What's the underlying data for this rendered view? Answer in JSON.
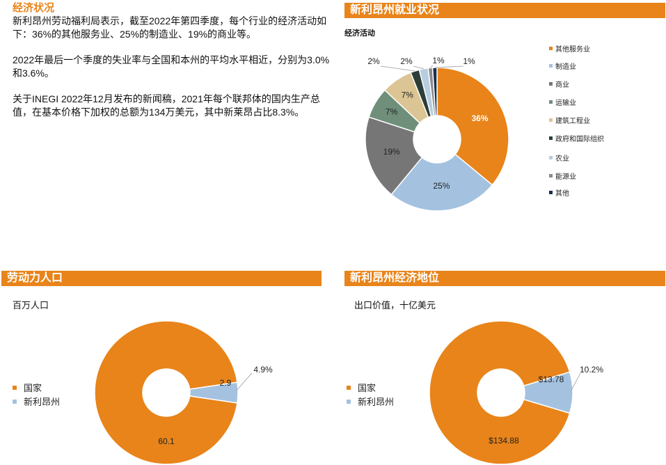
{
  "economy": {
    "title": "经济状况",
    "p1": "新利昂州劳动福利局表示，截至2022年第四季度，每个行业的经济活动如下：36%的其他服务业、25%的制造业、19%的商业等。",
    "p2": "2022年最后一个季度的失业率与全国和本州的平均水平相近，分别为3.0%和3.6%。",
    "p3": "关于INEGI 2022年12月发布的新闻稿，2021年每个联邦体的国内生产总值，在基本价格下加权的总额为134万美元，其中新莱昂占比8.3%。"
  },
  "employment": {
    "banner": "新利昂州就业状况",
    "subtitle": "经济活动"
  },
  "labor": {
    "banner": "劳动力人口",
    "unit": "百万人口"
  },
  "position": {
    "banner": "新利昂州经济地位",
    "unit": "出口价值，十亿美元"
  },
  "colors": {
    "orange": "#e8841a",
    "lightblue": "#a4c2e0"
  },
  "chart_data": [
    {
      "type": "pie",
      "title": "经济活动",
      "categories": [
        "其他服务业",
        "制造业",
        "商业",
        "运输业",
        "建筑工程业",
        "政府和国际组织",
        "农业",
        "能源业",
        "其他"
      ],
      "values": [
        36,
        25,
        19,
        7,
        7,
        2,
        2,
        1,
        1
      ],
      "value_labels": [
        "36%",
        "25%",
        "19%",
        "7%",
        "7%",
        "2%",
        "2%",
        "1%",
        "1%"
      ],
      "colors": [
        "#e8841a",
        "#a4c2e0",
        "#767676",
        "#6f8f7a",
        "#dcc594",
        "#2c3e37",
        "#b7cde0",
        "#8b8b8b",
        "#1a2f4d"
      ],
      "legend": "right"
    },
    {
      "type": "pie",
      "title": "百万人口",
      "categories": [
        "国家",
        "新利昂州"
      ],
      "values": [
        60.1,
        2.9
      ],
      "value_labels": [
        "60.1",
        "2.9"
      ],
      "share_label": "4.9%",
      "colors": [
        "#e8841a",
        "#a4c2e0"
      ],
      "legend": "left"
    },
    {
      "type": "pie",
      "title": "出口价值，十亿美元",
      "categories": [
        "国家",
        "新利昂州"
      ],
      "values": [
        134.88,
        13.78
      ],
      "value_labels": [
        "$134.88",
        "$13.78"
      ],
      "share_label": "10.2%",
      "colors": [
        "#e8841a",
        "#a4c2e0"
      ],
      "legend": "left"
    }
  ]
}
